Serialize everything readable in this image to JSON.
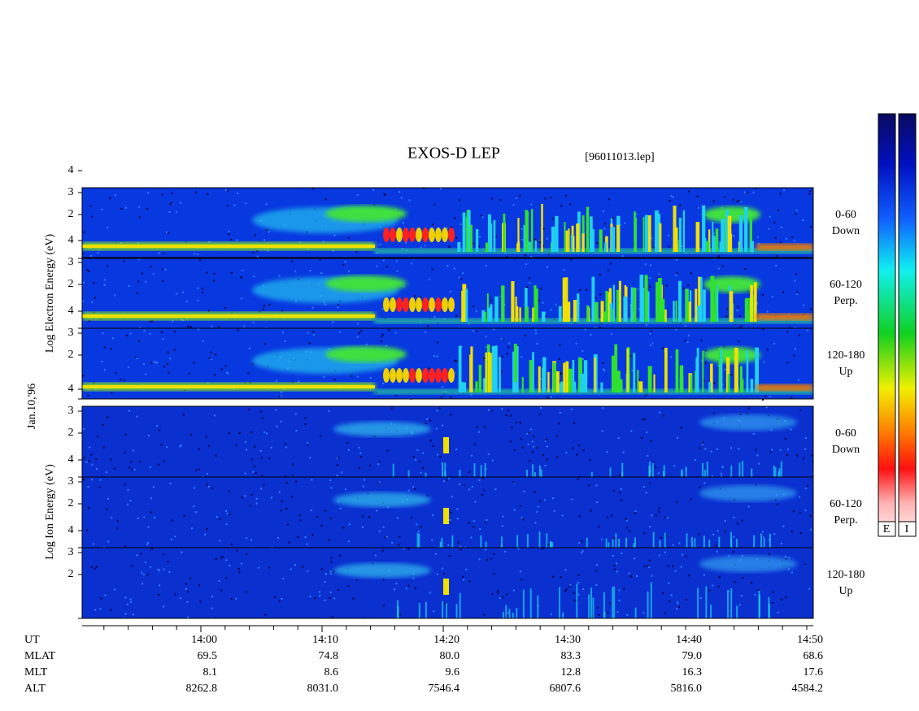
{
  "header": {
    "title": "EXOS-D LEP",
    "file": "[96011013.lep]"
  },
  "electron": {
    "axis_label": "Log Electron Energy (eV)",
    "panels": [
      {
        "range": "0-60",
        "direction": "Down"
      },
      {
        "range": "60-120",
        "direction": "Perp."
      },
      {
        "range": "120-180",
        "direction": "Up"
      }
    ]
  },
  "date": "Jan.10,'96",
  "ion": {
    "axis_label": "Log Ion Energy (eV)",
    "panels": [
      {
        "range": "0-60",
        "direction": "Down"
      },
      {
        "range": "60-120",
        "direction": "Perp."
      },
      {
        "range": "120-180",
        "direction": "Up"
      }
    ]
  },
  "yticks": [
    "4",
    "3",
    "2"
  ],
  "colorbar": {
    "labels": [
      "E",
      "I"
    ]
  },
  "footer": {
    "rows": [
      {
        "name": "UT",
        "values": [
          "14:00",
          "14:10",
          "14:20",
          "14:30",
          "14:40",
          "14:50"
        ]
      },
      {
        "name": "MLAT",
        "values": [
          "69.5",
          "74.8",
          "80.0",
          "83.3",
          "79.0",
          "68.6"
        ]
      },
      {
        "name": "MLT",
        "values": [
          "8.1",
          "8.6",
          "9.6",
          "12.8",
          "16.3",
          "17.6"
        ]
      },
      {
        "name": "ALT",
        "values": [
          "8262.8",
          "8031.0",
          "7546.4",
          "6807.6",
          "5816.0",
          "4584.2"
        ]
      }
    ]
  }
}
